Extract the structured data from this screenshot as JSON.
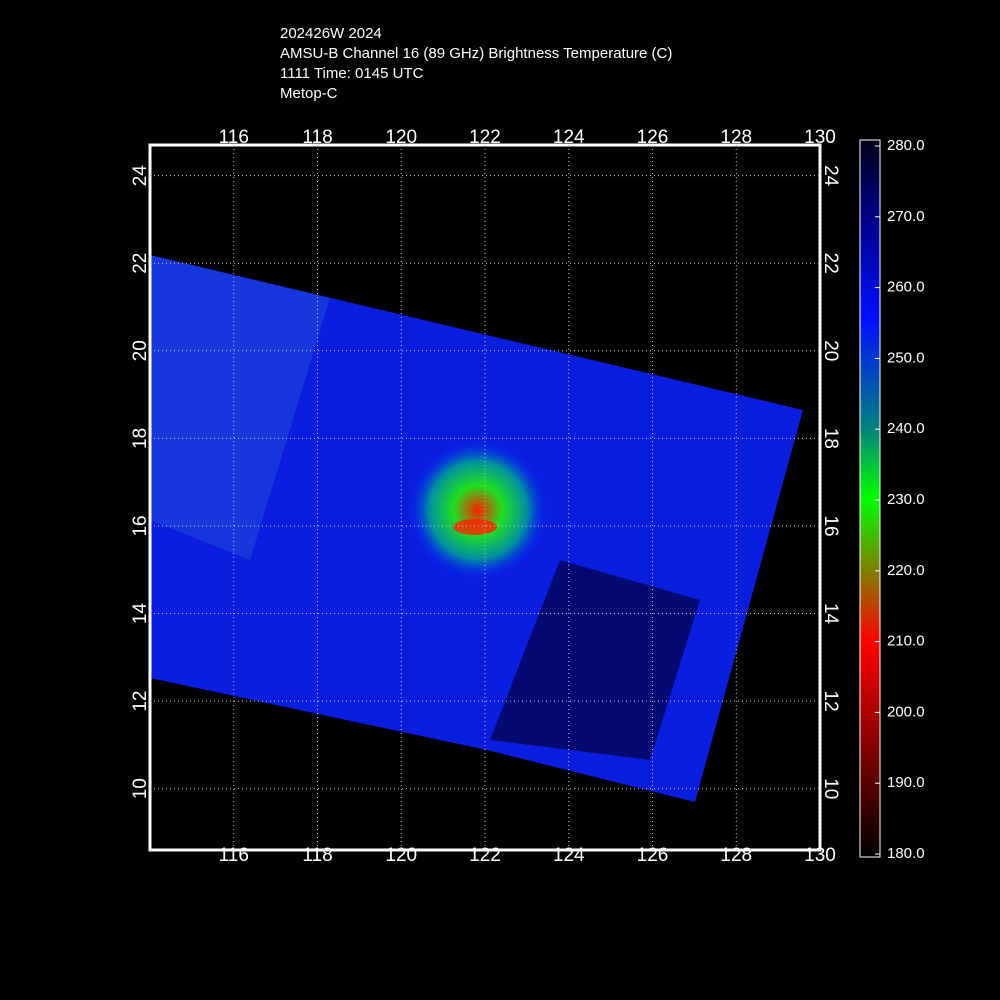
{
  "header": {
    "lines": [
      "202426W 2024",
      "AMSU-B Channel 16 (89 GHz) Brightness Temperature (C)",
      "1111 Time: 0145 UTC",
      "Metop-C"
    ]
  },
  "map": {
    "xlim": [
      114,
      130
    ],
    "ylim": [
      8.6,
      24.7
    ],
    "lon_ticks": [
      116,
      118,
      120,
      122,
      124,
      126,
      128,
      130
    ],
    "lat_ticks": [
      10,
      12,
      14,
      16,
      18,
      20,
      22,
      24
    ],
    "grid": true
  },
  "colorbar": {
    "clim": [
      180,
      280
    ],
    "ticks": [
      {
        "value": 280,
        "label": "280.0"
      },
      {
        "value": 270,
        "label": "270.0"
      },
      {
        "value": 260,
        "label": "260.0"
      },
      {
        "value": 250,
        "label": "250.0"
      },
      {
        "value": 240,
        "label": "240.0"
      },
      {
        "value": 230,
        "label": "230.0"
      },
      {
        "value": 220,
        "label": "220.0"
      },
      {
        "value": 210,
        "label": "210.0"
      },
      {
        "value": 200,
        "label": "200.0"
      },
      {
        "value": 190,
        "label": "190.0"
      },
      {
        "value": 180,
        "label": "180.0"
      }
    ]
  }
}
